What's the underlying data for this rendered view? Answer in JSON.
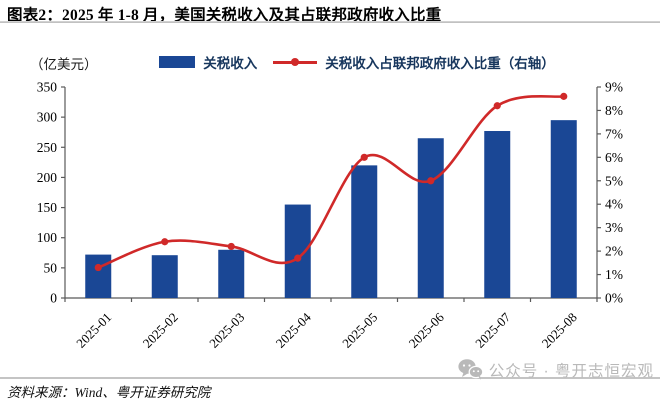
{
  "title": "图表2：2025 年 1-8 月，美国关税收入及其占联邦政府收入比重",
  "source": "资料来源：Wind、粤开证券研究院",
  "watermark": {
    "icon": "wechat-icon",
    "label": "公众号 · 粤开志恒宏观"
  },
  "colors": {
    "bar": "#1A4795",
    "line": "#D02929",
    "legend_text": "#17365D",
    "axis": "#595959",
    "tick_text": "#000000",
    "watermark": "#b9b9b9"
  },
  "chart_data": {
    "type": "bar",
    "subtype": "bar+line dual-axis combo",
    "categories": [
      "2025-01",
      "2025-02",
      "2025-03",
      "2025-04",
      "2025-05",
      "2025-06",
      "2025-07",
      "2025-08"
    ],
    "series": [
      {
        "name": "关税收入",
        "type": "bar",
        "axis": "left",
        "color": "#1A4795",
        "values": [
          72,
          71,
          80,
          155,
          220,
          265,
          277,
          295
        ]
      },
      {
        "name": "关税收入占联邦政府收入比重（右轴）",
        "type": "line",
        "axis": "right",
        "color": "#D02929",
        "values": [
          1.3,
          2.4,
          2.2,
          1.7,
          6.0,
          5.0,
          8.2,
          8.6
        ]
      }
    ],
    "left_axis": {
      "unit": "（亿美元）",
      "min": 0,
      "max": 350,
      "step": 50,
      "ticks": [
        "0",
        "50",
        "100",
        "150",
        "200",
        "250",
        "300",
        "350"
      ]
    },
    "right_axis": {
      "min": 0,
      "max": 9,
      "step": 1,
      "suffix": "%",
      "ticks": [
        "0%",
        "1%",
        "2%",
        "3%",
        "4%",
        "5%",
        "6%",
        "7%",
        "8%",
        "9%"
      ]
    },
    "legend_position": "top-center",
    "grid": false
  }
}
